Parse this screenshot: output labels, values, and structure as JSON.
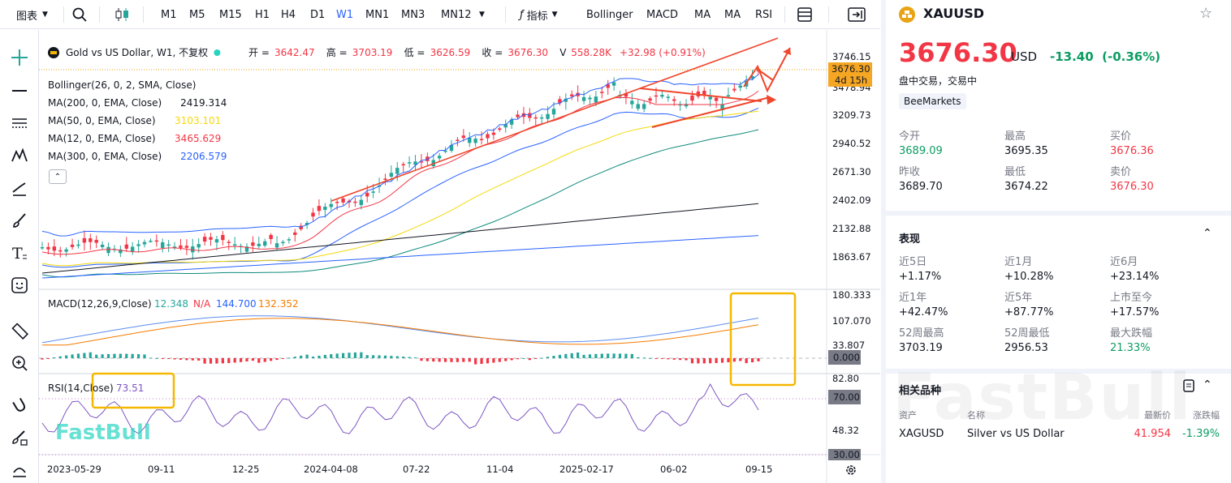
{
  "toolbar": {
    "chart_label": "图表",
    "timeframes": [
      "M1",
      "M5",
      "M15",
      "H1",
      "H4",
      "D1",
      "W1",
      "MN1",
      "MN3",
      "MN12"
    ],
    "active_timeframe": "W1",
    "indicators_label": "指标",
    "indicator_items": [
      "Bollinger",
      "MACD",
      "MA",
      "MA",
      "RSI"
    ]
  },
  "legend": {
    "title": "Gold vs US Dollar, W1, 不复权",
    "o_label": "开 =",
    "o": "3642.47",
    "h_label": "高 =",
    "h": "3703.19",
    "l_label": "低 =",
    "l": "3626.59",
    "c_label": "收 =",
    "c": "3676.30",
    "v_label": "V",
    "v": "558.28K",
    "chg": "+32.98 (+0.91%)",
    "lines": [
      {
        "name": "Bollinger(26, 0, 2, SMA, Close)",
        "value": "",
        "color": "#131722"
      },
      {
        "name": "MA(200, 0, EMA, Close)",
        "value": "2419.314",
        "color": "#131722"
      },
      {
        "name": "MA(50, 0, EMA, Close)",
        "value": "3103.101",
        "color": "#f5d90a"
      },
      {
        "name": "MA(12, 0, EMA, Close)",
        "value": "3465.629",
        "color": "#f23645"
      },
      {
        "name": "MA(300, 0, EMA, Close)",
        "value": "2206.579",
        "color": "#2962ff"
      }
    ]
  },
  "macd_legend": {
    "name": "MACD(12,26,9,Close)",
    "v1": "12.348",
    "v2": "N/A",
    "v3": "144.700",
    "v4": "132.352"
  },
  "rsi_legend": {
    "name": "RSI(14,Close)",
    "value": "73.51"
  },
  "price_axis": [
    "3746.15",
    "3478.94",
    "3209.73",
    "2940.52",
    "2671.30",
    "2402.09",
    "2132.88",
    "1863.67"
  ],
  "price_tag": {
    "price": "3676.30",
    "countdown": "4d 15h"
  },
  "macd_axis": [
    "180.333",
    "107.070",
    "33.807"
  ],
  "macd_tag": "0.000",
  "rsi_axis": [
    "82.80",
    "48.32"
  ],
  "rsi_tags": [
    "70.00",
    "30.00"
  ],
  "time_axis": [
    "2023-05-29",
    "09-11",
    "12-25",
    "2024-04-08",
    "07-22",
    "11-04",
    "2025-02-17",
    "06-02",
    "09-15"
  ],
  "watermark": "FastBull",
  "symbol": {
    "ticker": "XAUUSD",
    "price": "3676.30",
    "currency": "USD",
    "change": "-13.40",
    "change_pct": "(-0.36%)",
    "status": "盘中交易，交易中",
    "provider": "BeeMarkets"
  },
  "quote": [
    {
      "label": "今开",
      "value": "3689.09",
      "color": "green"
    },
    {
      "label": "最高",
      "value": "3695.35",
      "color": "black"
    },
    {
      "label": "买价",
      "value": "3676.36",
      "color": "red"
    },
    {
      "label": "昨收",
      "value": "3689.70",
      "color": "black"
    },
    {
      "label": "最低",
      "value": "3674.22",
      "color": "black"
    },
    {
      "label": "卖价",
      "value": "3676.30",
      "color": "red"
    }
  ],
  "performance": {
    "title": "表现",
    "items": [
      {
        "label": "近5日",
        "value": "+1.17%",
        "color": "black"
      },
      {
        "label": "近1月",
        "value": "+10.28%",
        "color": "black"
      },
      {
        "label": "近6月",
        "value": "+23.14%",
        "color": "black"
      },
      {
        "label": "近1年",
        "value": "+42.47%",
        "color": "black"
      },
      {
        "label": "近5年",
        "value": "+87.77%",
        "color": "black"
      },
      {
        "label": "上市至今",
        "value": "+17.57%",
        "color": "black"
      },
      {
        "label": "52周最高",
        "value": "3703.19",
        "color": "black"
      },
      {
        "label": "52周最低",
        "value": "2956.53",
        "color": "black"
      },
      {
        "label": "最大跌幅",
        "value": "21.33%",
        "color": "green"
      }
    ]
  },
  "related": {
    "title": "相关品种",
    "headers": [
      "资产",
      "名称",
      "最新价",
      "涨跌幅"
    ],
    "rows": [
      {
        "asset": "XAGUSD",
        "name": "Silver vs US Dollar",
        "price": "41.954",
        "change": "-1.39%"
      }
    ]
  },
  "colors": {
    "up": "#26a69a",
    "down": "#f23645",
    "accent": "#2962ff",
    "annot": "#f0462c",
    "highlight": "#f5b800"
  }
}
